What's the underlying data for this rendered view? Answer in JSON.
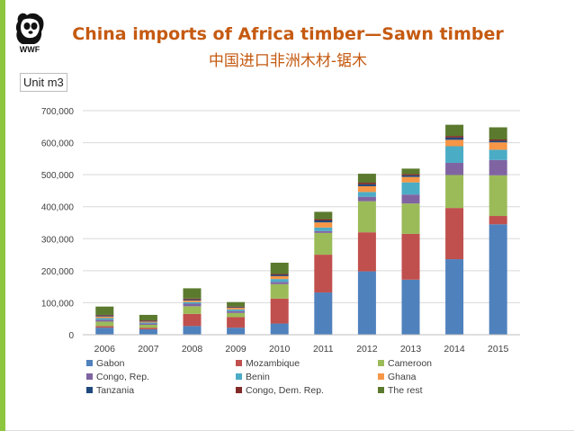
{
  "header": {
    "title": "China imports of Africa timber—Sawn timber",
    "subtitle": "中国进口非洲木材-锯木",
    "unit_label": "Unit m3",
    "logo_text": "WWF"
  },
  "colors": {
    "title": "#c55a11",
    "accent_bar": "#8dc63f"
  },
  "chart_data": {
    "type": "bar",
    "stacked": true,
    "title": "China imports of Africa timber—Sawn timber",
    "xlabel": "",
    "ylabel": "Unit m3",
    "categories": [
      "2006",
      "2007",
      "2008",
      "2009",
      "2010",
      "2011",
      "2012",
      "2013",
      "2014",
      "2015"
    ],
    "ylim": [
      0,
      700000
    ],
    "yticks": [
      0,
      100000,
      200000,
      300000,
      400000,
      500000,
      600000,
      700000
    ],
    "ytick_labels": [
      "0",
      "100,000",
      "200,000",
      "300,000",
      "400,000",
      "500,000",
      "600,000",
      "700,000"
    ],
    "grid": true,
    "legend_position": "bottom",
    "series": [
      {
        "name": "Gabon",
        "color": "#4f81bd",
        "values": [
          22000,
          17000,
          27000,
          22000,
          35000,
          132000,
          198000,
          172000,
          236000,
          345000
        ]
      },
      {
        "name": "Mozambique",
        "color": "#c0504d",
        "values": [
          5000,
          5000,
          38000,
          33000,
          78000,
          118000,
          122000,
          143000,
          160000,
          26000
        ]
      },
      {
        "name": "Cameroon",
        "color": "#9bbb59",
        "values": [
          14000,
          9000,
          24000,
          13000,
          45000,
          68000,
          97000,
          95000,
          103000,
          127000
        ]
      },
      {
        "name": "Congo, Rep.",
        "color": "#8064a2",
        "values": [
          6000,
          4000,
          8000,
          6000,
          7000,
          6000,
          14000,
          28000,
          38000,
          48000
        ]
      },
      {
        "name": "Benin",
        "color": "#4bacc6",
        "values": [
          5000,
          3000,
          5000,
          5000,
          9000,
          11000,
          15000,
          38000,
          52000,
          32000
        ]
      },
      {
        "name": "Ghana",
        "color": "#f79646",
        "values": [
          5000,
          3000,
          5000,
          5000,
          9000,
          16000,
          18000,
          17000,
          20000,
          23000
        ]
      },
      {
        "name": "Tanzania",
        "color": "#1f497d",
        "values": [
          3000,
          2000,
          3000,
          2000,
          4000,
          6000,
          6000,
          5000,
          7000,
          5000
        ]
      },
      {
        "name": "Congo, Dem. Rep.",
        "color": "#7f2a26",
        "values": [
          2000,
          2000,
          3000,
          2000,
          3000,
          4000,
          5000,
          4000,
          5000,
          4000
        ]
      },
      {
        "name": "The rest",
        "color": "#5b7a2e",
        "values": [
          26000,
          17000,
          32000,
          14000,
          35000,
          23000,
          28000,
          17000,
          35000,
          38000
        ]
      }
    ]
  }
}
